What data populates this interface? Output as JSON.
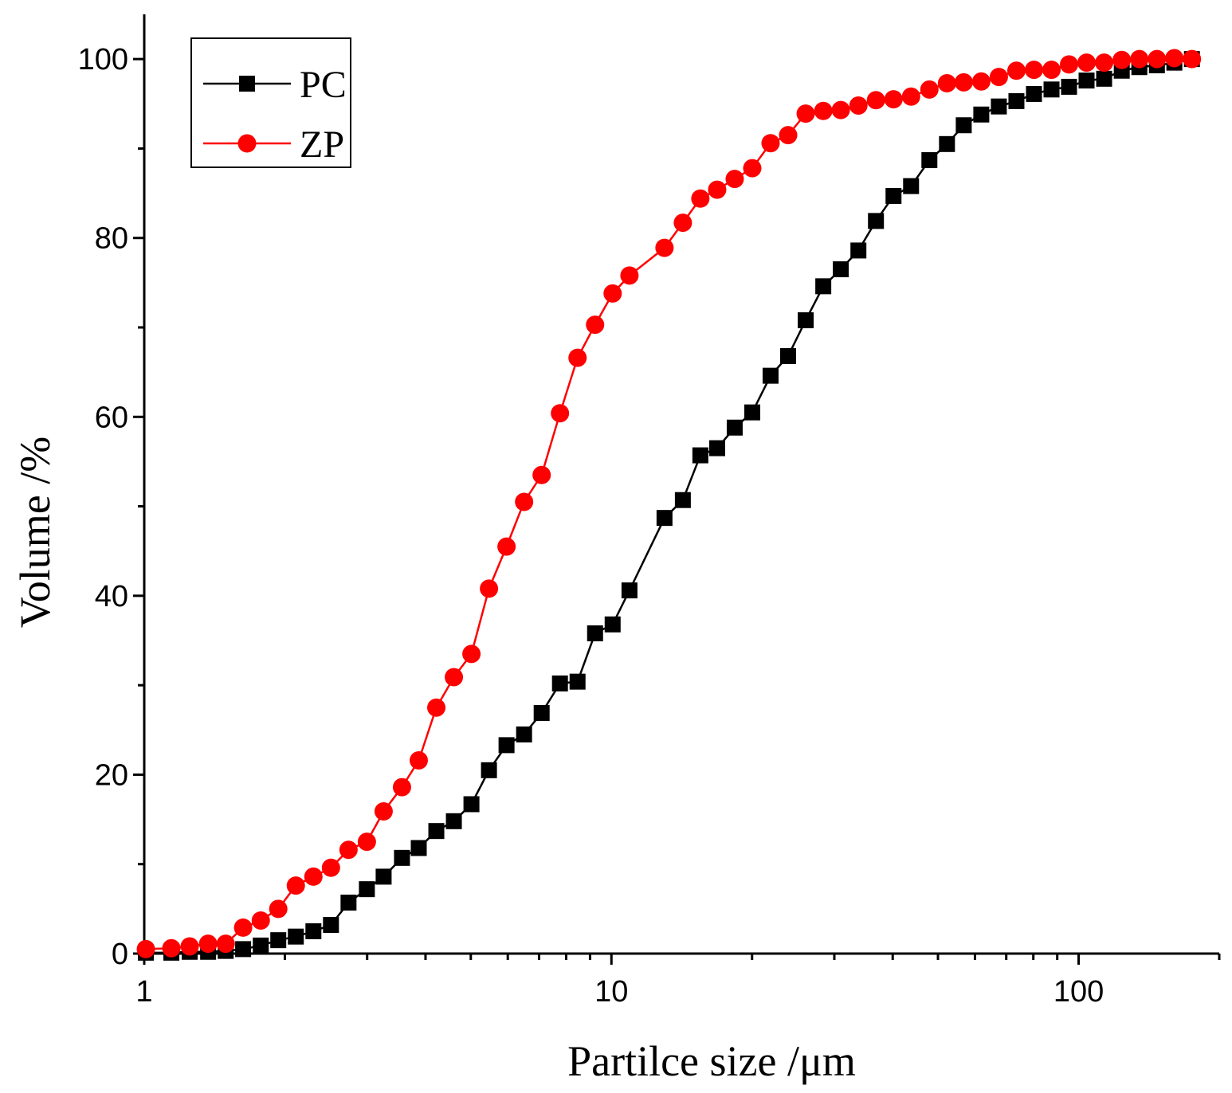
{
  "chart_data": {
    "type": "line",
    "x_label": "Partilce size /μm",
    "y_label": "Volume /%",
    "x": [
      1.008,
      1.143,
      1.251,
      1.37,
      1.494,
      1.628,
      1.776,
      1.936,
      2.111,
      2.302,
      2.51,
      2.737,
      2.996,
      3.254,
      3.562,
      3.869,
      4.219,
      4.6,
      5.016,
      5.469,
      5.963,
      6.502,
      7.09,
      7.76,
      8.462,
      9.226,
      10.06,
      10.93,
      12.99,
      14.22,
      15.5,
      16.84,
      18.36,
      20.02,
      21.91,
      23.89,
      26.05,
      28.41,
      30.97,
      33.78,
      36.83,
      40.16,
      43.79,
      47.93,
      52.27,
      56.77,
      61.9,
      67.49,
      73.6,
      80.25,
      87.5,
      95.39,
      104.0,
      113.4,
      123.7,
      134.9,
      147.1,
      160.3,
      174.8
    ],
    "series": [
      {
        "name": "PC",
        "color": "#000000",
        "marker": "square",
        "values": [
          0.1,
          0.1,
          0.2,
          0.2,
          0.3,
          0.5,
          0.9,
          1.5,
          1.9,
          2.5,
          3.2,
          5.7,
          7.2,
          8.6,
          10.7,
          11.8,
          13.7,
          14.8,
          16.7,
          20.5,
          23.3,
          24.5,
          26.9,
          30.2,
          30.4,
          35.8,
          36.8,
          40.6,
          48.7,
          50.7,
          55.7,
          56.5,
          58.8,
          60.5,
          64.6,
          66.8,
          70.8,
          74.6,
          76.5,
          78.6,
          81.9,
          84.7,
          85.8,
          88.7,
          90.5,
          92.6,
          93.8,
          94.7,
          95.3,
          96.1,
          96.6,
          96.9,
          97.6,
          97.8,
          98.7,
          99.1,
          99.3,
          99.6,
          100
        ]
      },
      {
        "name": "ZP",
        "color": "#ff0000",
        "marker": "circle",
        "values": [
          0.5,
          0.6,
          0.8,
          1.1,
          1.1,
          2.9,
          3.7,
          5.0,
          7.6,
          8.6,
          9.6,
          11.6,
          12.5,
          15.9,
          18.6,
          21.6,
          27.5,
          30.9,
          33.5,
          40.8,
          45.5,
          50.5,
          53.5,
          60.4,
          66.6,
          70.3,
          73.8,
          75.8,
          78.9,
          81.7,
          84.4,
          85.4,
          86.6,
          87.8,
          90.6,
          91.5,
          93.9,
          94.2,
          94.3,
          94.8,
          95.4,
          95.5,
          95.8,
          96.6,
          97.3,
          97.4,
          97.5,
          98.0,
          98.7,
          98.8,
          98.8,
          99.4,
          99.6,
          99.6,
          99.9,
          100,
          100,
          100.1,
          100
        ]
      }
    ],
    "xscale": "log",
    "xlim": [
      1,
      200
    ],
    "xticks": [
      1,
      10,
      100
    ],
    "xminorticks": [
      2,
      3,
      4,
      5,
      6,
      7,
      8,
      9,
      20,
      30,
      40,
      50,
      60,
      70,
      80,
      90,
      200
    ],
    "ylim": [
      0,
      105
    ],
    "yticks": [
      0,
      20,
      40,
      60,
      80,
      100
    ],
    "yminorticks": [
      10,
      30,
      50,
      70,
      90
    ],
    "grid": false,
    "legend": "upper left"
  }
}
